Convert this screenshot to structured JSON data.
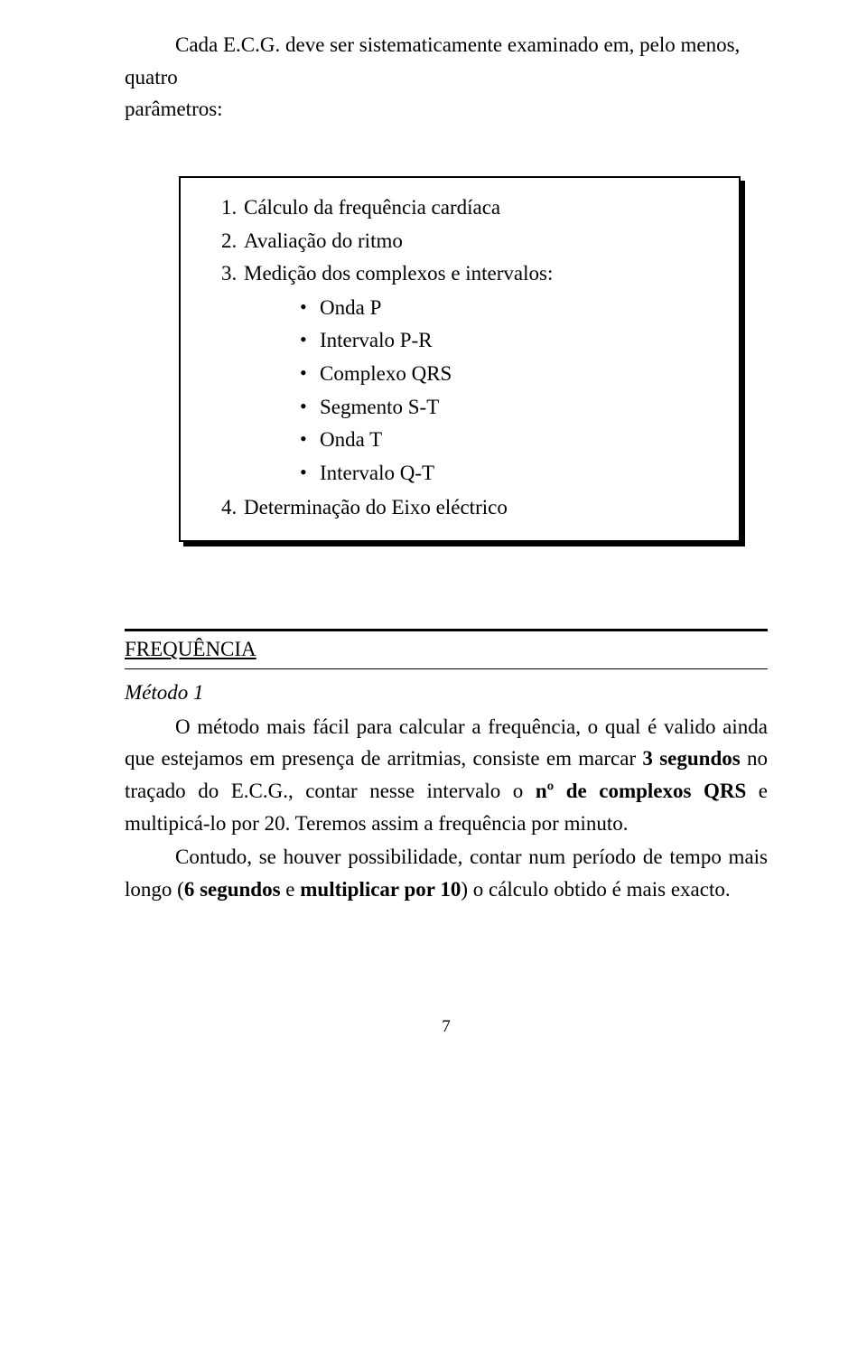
{
  "intro": {
    "line1": "Cada E.C.G. deve ser sistematicamente examinado em, pelo menos, quatro",
    "line2": "parâmetros:"
  },
  "box": {
    "item1": "Cálculo da frequência cardíaca",
    "item2": "Avaliação do ritmo",
    "item3": "Medição dos complexos e intervalos:",
    "sub1": "Onda P",
    "sub2": "Intervalo P-R",
    "sub3": "Complexo QRS",
    "sub4": "Segmento S-T",
    "sub5": "Onda T",
    "sub6": "Intervalo Q-T",
    "item4": "Determinação do Eixo eléctrico"
  },
  "section": {
    "heading": "FREQUÊNCIA",
    "subheading": "Método 1"
  },
  "para1_html": "O método mais fácil para calcular a frequência, o qual é valido ainda que estejamos em presença de arritmias, consiste em marcar <b>3 segundos</b> no traçado do E.C.G., contar nesse intervalo o <b>nº de complexos QRS</b> e multipicá-lo por 20. Teremos assim a frequência por minuto.",
  "para2_html": "Contudo, se houver possibilidade, contar num período de tempo mais longo (<b>6 segundos</b> e <b>multiplicar por 10</b>) o cálculo obtido é mais exacto.",
  "page_number": "7"
}
